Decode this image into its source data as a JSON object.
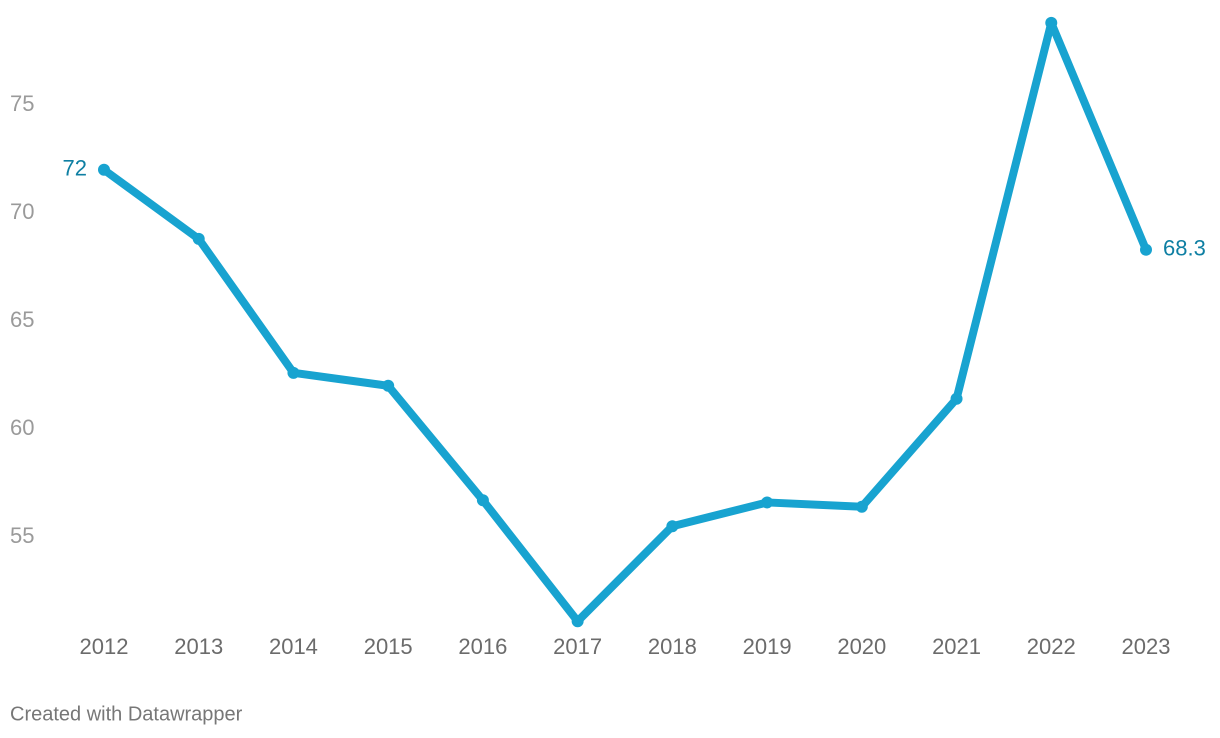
{
  "chart_data": {
    "type": "line",
    "categories": [
      "2012",
      "2013",
      "2014",
      "2015",
      "2016",
      "2017",
      "2018",
      "2019",
      "2020",
      "2021",
      "2022",
      "2023"
    ],
    "series": [
      {
        "color": "#18a3d0",
        "values": [
          72,
          68.8,
          62.6,
          62.0,
          56.7,
          51.1,
          55.5,
          56.6,
          56.4,
          61.4,
          78.8,
          68.3
        ],
        "value_labels": [
          "72",
          null,
          null,
          null,
          null,
          null,
          null,
          null,
          null,
          null,
          null,
          "68.3"
        ]
      }
    ],
    "ylim": [
      51,
      79
    ],
    "yticks": [
      55,
      60,
      65,
      70,
      75
    ],
    "grid": false,
    "credit": "Created with Datawrapper"
  }
}
